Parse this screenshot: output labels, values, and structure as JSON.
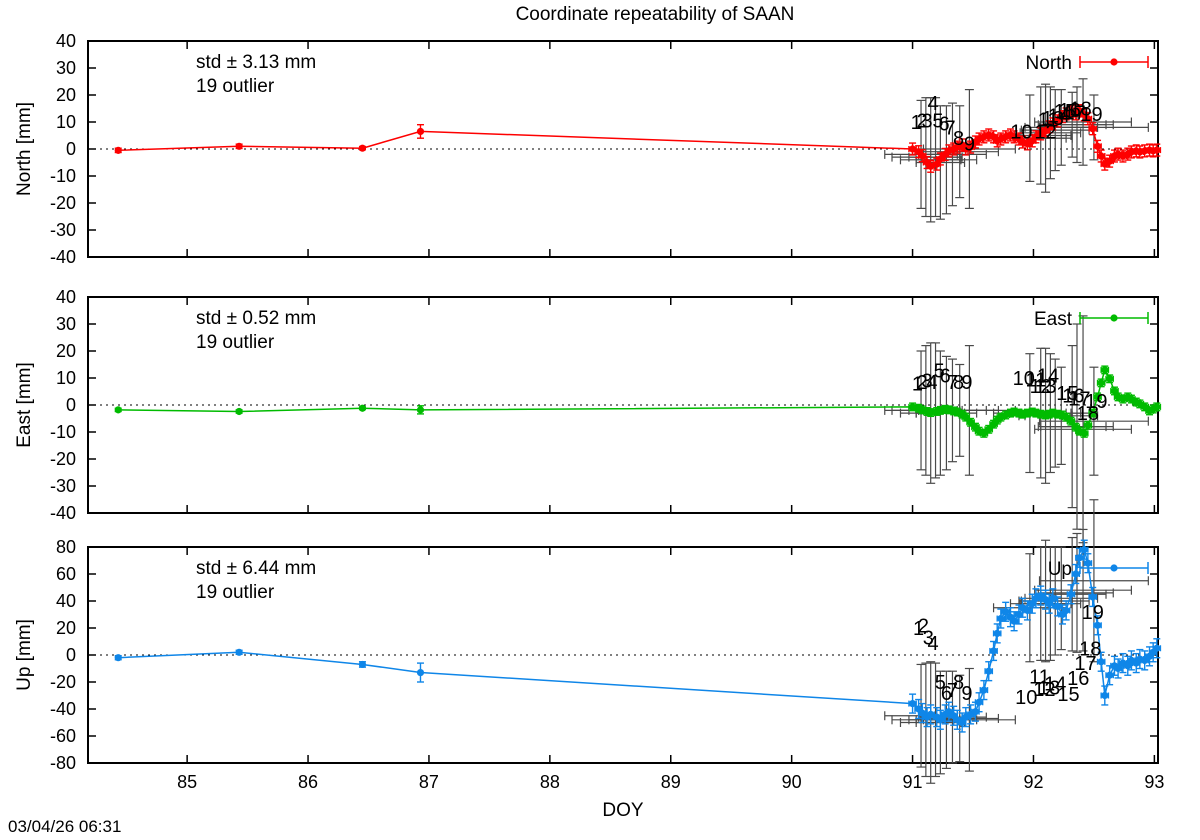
{
  "chart_data": {
    "type": "line",
    "title": "Coordinate repeatability of SAAN",
    "xlabel": "DOY",
    "timestamp": "03/04/26 06:31",
    "xlim": [
      84.18,
      93.03
    ],
    "xticks": [
      85,
      86,
      87,
      88,
      89,
      90,
      91,
      92,
      93
    ],
    "background": "#ffffff",
    "axis_color": "#000000",
    "outlier_cross_color": "#4a4a4a",
    "shared_x": [
      84.43,
      85.43,
      86.45,
      86.93,
      91.0,
      91.05,
      91.08,
      91.12,
      91.15,
      91.2,
      91.23,
      91.27,
      91.3,
      91.34,
      91.37,
      91.41,
      91.44,
      91.48,
      91.52,
      91.55,
      91.59,
      91.63,
      91.67,
      91.7,
      91.73,
      91.77,
      91.81,
      91.84,
      91.88,
      91.91,
      91.95,
      91.99,
      92.02,
      92.06,
      92.1,
      92.13,
      92.16,
      92.2,
      92.24,
      92.27,
      92.31,
      92.35,
      92.38,
      92.42,
      92.45,
      92.49,
      92.53,
      92.56,
      92.59,
      92.63,
      92.67,
      92.7,
      92.74,
      92.78,
      92.81,
      92.85,
      92.88,
      92.92,
      92.96,
      92.99,
      93.02
    ],
    "outlier_x": [
      91.07,
      91.11,
      91.15,
      91.19,
      91.23,
      91.28,
      91.33,
      91.39,
      91.47,
      91.97,
      92.06,
      92.1,
      92.14,
      92.18,
      92.23,
      92.32,
      92.36,
      92.41,
      92.5
    ],
    "outlier_xe": [
      0.3,
      0.28,
      0.25,
      0.22,
      0.2,
      0.25,
      0.28,
      0.32,
      0.38,
      0.3,
      0.25,
      0.22,
      0.25,
      0.28,
      0.3,
      0.28,
      0.3,
      0.4,
      0.45
    ],
    "outlier_numbers": [
      "1",
      "2",
      "3",
      "4",
      "5",
      "6",
      "7",
      "8",
      "9",
      "10",
      "11",
      "12",
      "13",
      "14",
      "15",
      "16",
      "17",
      "18",
      "19"
    ],
    "panels": [
      {
        "name": "North",
        "ylabel": "North [mm]",
        "legend_label": "North",
        "color": "#fe0000",
        "std_label": "std ± 3.13 mm",
        "outlier_label": "19 outlier",
        "ylim": [
          -40,
          40
        ],
        "yticks": [
          -40,
          -30,
          -20,
          -10,
          0,
          10,
          20,
          30,
          40
        ],
        "show_xtick_labels": false,
        "series": {
          "y": [
            -0.5,
            1.0,
            0.3,
            6.5,
            0,
            -1,
            -2.5,
            -5,
            -6.4,
            -5.6,
            -3.7,
            -2,
            -0.7,
            0,
            0.7,
            1.5,
            0,
            0.7,
            2.6,
            3.7,
            4.5,
            5.2,
            4.5,
            3,
            3.7,
            4.5,
            5.2,
            4.5,
            3.7,
            2.6,
            1.9,
            3,
            4.5,
            5.6,
            6.7,
            8.2,
            9.3,
            10.4,
            12,
            13,
            13.8,
            13,
            14.2,
            12.7,
            11.2,
            7.5,
            1,
            -2.6,
            -5.6,
            -4.5,
            -2.6,
            -1.9,
            -2.6,
            -1.9,
            -1.1,
            -0.7,
            -1.1,
            -0.7,
            -0.4,
            -0.7,
            -0.4
          ],
          "ye": [
            0.8,
            0.8,
            0.6,
            2.5
          ],
          "ye_rest": 2.2,
          "xe": [
            0,
            0,
            0,
            0
          ],
          "xe_rest": 0.03
        },
        "outliers": {
          "y": [
            -2,
            -3,
            -4,
            -3,
            -5,
            -4,
            -2,
            -1,
            0,
            4,
            5,
            4,
            6,
            7,
            8,
            9,
            9,
            10,
            8
          ],
          "ye": [
            20,
            22,
            23,
            22,
            21,
            20,
            19,
            17,
            22,
            16,
            18,
            20,
            17,
            15,
            14,
            12,
            14,
            16,
            12
          ]
        },
        "outlier_labels": {
          "x": [
            91.03,
            91.08,
            91.12,
            91.17,
            91.21,
            91.26,
            91.31,
            91.38,
            91.47,
            91.9,
            92.12,
            92.1,
            92.16,
            92.21,
            92.26,
            92.3,
            92.34,
            92.39,
            92.48
          ],
          "y": [
            10,
            10.5,
            10.5,
            17,
            10.5,
            9.5,
            8,
            4,
            2,
            6.5,
            11,
            6.5,
            11.5,
            12.5,
            14,
            14.5,
            13.5,
            15,
            13
          ]
        }
      },
      {
        "name": "East",
        "ylabel": "East [mm]",
        "legend_label": "East",
        "color": "#00bb00",
        "std_label": "std ± 0.52 mm",
        "outlier_label": "19 outlier",
        "ylim": [
          -40,
          40
        ],
        "yticks": [
          -40,
          -30,
          -20,
          -10,
          0,
          10,
          20,
          30,
          40
        ],
        "show_xtick_labels": false,
        "series": {
          "y": [
            -1.8,
            -2.4,
            -1.2,
            -1.8,
            -0.7,
            -1.2,
            -1.8,
            -2.4,
            -2.8,
            -2.4,
            -2,
            -1.6,
            -1.8,
            -2.2,
            -2.6,
            -3.4,
            -4.5,
            -6.4,
            -8.2,
            -9.7,
            -10.5,
            -9,
            -7.1,
            -5.6,
            -4.5,
            -3.7,
            -3,
            -2.6,
            -3,
            -3.4,
            -3,
            -2.6,
            -3,
            -3.4,
            -3.7,
            -3.4,
            -3,
            -3.4,
            -3.7,
            -4.5,
            -6,
            -8.2,
            -9.7,
            -10.5,
            -7.5,
            -3,
            3,
            8.2,
            13,
            9.7,
            5.2,
            3,
            2.2,
            3,
            2.2,
            1.1,
            0.4,
            -0.7,
            -2.2,
            -1.5,
            -0.7
          ],
          "ye": [
            0.6,
            0.6,
            0.5,
            1.5
          ],
          "ye_rest": 1.4,
          "xe": [
            0,
            0,
            0,
            0
          ],
          "xe_rest": 0.03
        },
        "outliers": {
          "y": [
            -2,
            -2,
            -3,
            -2,
            -3,
            -3,
            -2,
            -2,
            -2,
            -3,
            -3,
            -4,
            -3,
            -3,
            -4,
            -8,
            -8,
            -9,
            -6
          ],
          "ye": [
            22,
            24,
            26,
            25,
            23,
            21,
            19,
            17,
            24,
            22,
            24,
            25,
            22,
            20,
            18,
            30,
            38,
            42,
            20
          ]
        },
        "outlier_labels": {
          "x": [
            91.04,
            91.08,
            91.12,
            91.16,
            91.22,
            91.27,
            91.33,
            91.38,
            91.45,
            91.92,
            92.02,
            92.06,
            92.1,
            92.12,
            92.28,
            92.33,
            92.38,
            92.45,
            92.52
          ],
          "y": [
            8,
            8.6,
            9,
            8.6,
            12.7,
            11,
            8.6,
            8.6,
            8.6,
            10,
            9.4,
            7,
            7,
            11,
            4.5,
            3.5,
            2.5,
            -3,
            1.5
          ]
        }
      },
      {
        "name": "Up",
        "ylabel": "Up [mm]",
        "legend_label": "Up",
        "color": "#0f86e8",
        "std_label": "std ± 6.44 mm",
        "outlier_label": "19 outlier",
        "ylim": [
          -80,
          80
        ],
        "yticks": [
          -80,
          -60,
          -40,
          -20,
          0,
          20,
          40,
          60,
          80
        ],
        "show_xtick_labels": true,
        "series": {
          "y": [
            -2,
            2,
            -7,
            -13,
            -36,
            -40,
            -43,
            -46,
            -44,
            -46,
            -48,
            -44,
            -42,
            -45,
            -48,
            -50,
            -46,
            -44,
            -42,
            -35,
            -26,
            -12,
            3,
            16,
            27,
            32,
            28,
            25,
            30,
            35,
            33,
            38,
            42,
            44,
            41,
            38,
            42,
            36,
            30,
            33,
            45,
            60,
            72,
            78,
            68,
            43,
            22,
            -5,
            -30,
            -15,
            -8,
            -10,
            -6,
            -8,
            -4,
            -6,
            -3,
            -4,
            -1,
            2,
            5
          ],
          "ye": [
            1.5,
            1.5,
            2,
            7
          ],
          "ye_rest": 7,
          "xe": [
            0,
            0,
            0,
            0
          ],
          "xe_rest": 0.03
        },
        "outliers": {
          "y": [
            -45,
            -48,
            -50,
            -48,
            -50,
            -48,
            -46,
            -47,
            -48,
            35,
            38,
            40,
            38,
            40,
            42,
            45,
            46,
            48,
            55
          ],
          "ye": [
            38,
            42,
            45,
            42,
            38,
            36,
            34,
            32,
            38,
            40,
            42,
            45,
            42,
            40,
            38,
            42,
            44,
            45,
            60
          ]
        },
        "outlier_labels": {
          "x": [
            91.05,
            91.09,
            91.13,
            91.17,
            91.23,
            91.28,
            91.33,
            91.38,
            91.45,
            91.94,
            92.05,
            92.09,
            92.13,
            92.18,
            92.29,
            92.37,
            92.43,
            92.47,
            92.49
          ],
          "y": [
            20,
            22,
            13,
            9,
            -20,
            -28,
            -26,
            -20,
            -28,
            -31,
            -16,
            -25,
            -24,
            -21,
            -29,
            -17,
            -6,
            5,
            32
          ]
        }
      }
    ]
  }
}
